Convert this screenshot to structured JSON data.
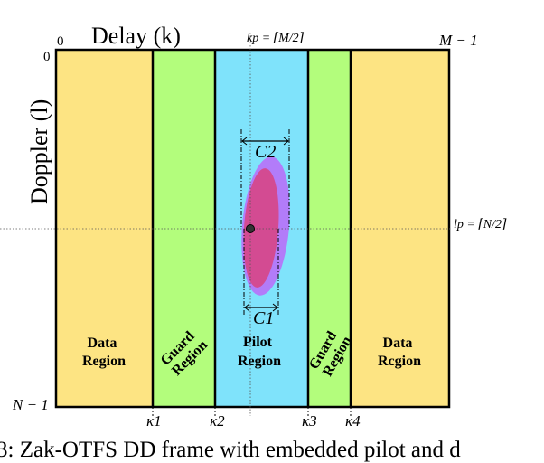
{
  "axes": {
    "delay_label": "Delay (k)",
    "doppler_label": "Doppler (l)",
    "k_origin": "0",
    "l_origin": "0",
    "k_max": "M − 1",
    "l_max": "N − 1",
    "kp_label": "kp = ⌈M/2⌉",
    "lp_label": "lp = ⌈N/2⌉",
    "kappa": [
      "κ1",
      "κ2",
      "κ3",
      "κ4"
    ]
  },
  "regions": [
    {
      "line1": "Data",
      "line2": "Region",
      "color": "#fde483"
    },
    {
      "line1": "Guard",
      "line2": "Region",
      "color": "#b3fd7c"
    },
    {
      "line1": "Pilot",
      "line2": "Region",
      "color": "#7fe3fb"
    },
    {
      "line1": "Guard",
      "line2": "Region",
      "color": "#b3fd7c"
    },
    {
      "line1": "Data",
      "line2": "Rcgion",
      "color": "#fde483"
    }
  ],
  "spread": {
    "c1_label": "C1",
    "c2_label": "C2",
    "outer_color": "#b27cf9",
    "inner_color": "#d34b92"
  },
  "caption": "3: Zak-OTFS DD frame with embedded pilot and d"
}
